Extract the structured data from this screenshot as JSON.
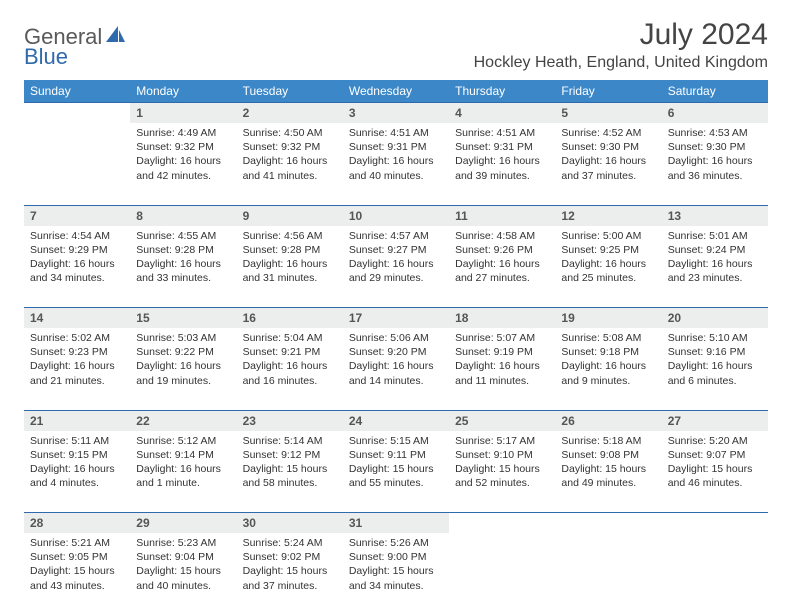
{
  "logo": {
    "part1": "General",
    "part2": "Blue"
  },
  "title": "July 2024",
  "location": "Hockley Heath, England, United Kingdom",
  "colors": {
    "header_bg": "#3b87c8",
    "accent_border": "#2f6aad",
    "daynum_bg": "#eceded",
    "logo_gray": "#5a5a5a",
    "logo_blue": "#2f6aad"
  },
  "weekdays": [
    "Sunday",
    "Monday",
    "Tuesday",
    "Wednesday",
    "Thursday",
    "Friday",
    "Saturday"
  ],
  "weeks": [
    {
      "nums": [
        "",
        "1",
        "2",
        "3",
        "4",
        "5",
        "6"
      ],
      "cells": [
        null,
        {
          "sunrise": "Sunrise: 4:49 AM",
          "sunset": "Sunset: 9:32 PM",
          "day1": "Daylight: 16 hours",
          "day2": "and 42 minutes."
        },
        {
          "sunrise": "Sunrise: 4:50 AM",
          "sunset": "Sunset: 9:32 PM",
          "day1": "Daylight: 16 hours",
          "day2": "and 41 minutes."
        },
        {
          "sunrise": "Sunrise: 4:51 AM",
          "sunset": "Sunset: 9:31 PM",
          "day1": "Daylight: 16 hours",
          "day2": "and 40 minutes."
        },
        {
          "sunrise": "Sunrise: 4:51 AM",
          "sunset": "Sunset: 9:31 PM",
          "day1": "Daylight: 16 hours",
          "day2": "and 39 minutes."
        },
        {
          "sunrise": "Sunrise: 4:52 AM",
          "sunset": "Sunset: 9:30 PM",
          "day1": "Daylight: 16 hours",
          "day2": "and 37 minutes."
        },
        {
          "sunrise": "Sunrise: 4:53 AM",
          "sunset": "Sunset: 9:30 PM",
          "day1": "Daylight: 16 hours",
          "day2": "and 36 minutes."
        }
      ]
    },
    {
      "nums": [
        "7",
        "8",
        "9",
        "10",
        "11",
        "12",
        "13"
      ],
      "cells": [
        {
          "sunrise": "Sunrise: 4:54 AM",
          "sunset": "Sunset: 9:29 PM",
          "day1": "Daylight: 16 hours",
          "day2": "and 34 minutes."
        },
        {
          "sunrise": "Sunrise: 4:55 AM",
          "sunset": "Sunset: 9:28 PM",
          "day1": "Daylight: 16 hours",
          "day2": "and 33 minutes."
        },
        {
          "sunrise": "Sunrise: 4:56 AM",
          "sunset": "Sunset: 9:28 PM",
          "day1": "Daylight: 16 hours",
          "day2": "and 31 minutes."
        },
        {
          "sunrise": "Sunrise: 4:57 AM",
          "sunset": "Sunset: 9:27 PM",
          "day1": "Daylight: 16 hours",
          "day2": "and 29 minutes."
        },
        {
          "sunrise": "Sunrise: 4:58 AM",
          "sunset": "Sunset: 9:26 PM",
          "day1": "Daylight: 16 hours",
          "day2": "and 27 minutes."
        },
        {
          "sunrise": "Sunrise: 5:00 AM",
          "sunset": "Sunset: 9:25 PM",
          "day1": "Daylight: 16 hours",
          "day2": "and 25 minutes."
        },
        {
          "sunrise": "Sunrise: 5:01 AM",
          "sunset": "Sunset: 9:24 PM",
          "day1": "Daylight: 16 hours",
          "day2": "and 23 minutes."
        }
      ]
    },
    {
      "nums": [
        "14",
        "15",
        "16",
        "17",
        "18",
        "19",
        "20"
      ],
      "cells": [
        {
          "sunrise": "Sunrise: 5:02 AM",
          "sunset": "Sunset: 9:23 PM",
          "day1": "Daylight: 16 hours",
          "day2": "and 21 minutes."
        },
        {
          "sunrise": "Sunrise: 5:03 AM",
          "sunset": "Sunset: 9:22 PM",
          "day1": "Daylight: 16 hours",
          "day2": "and 19 minutes."
        },
        {
          "sunrise": "Sunrise: 5:04 AM",
          "sunset": "Sunset: 9:21 PM",
          "day1": "Daylight: 16 hours",
          "day2": "and 16 minutes."
        },
        {
          "sunrise": "Sunrise: 5:06 AM",
          "sunset": "Sunset: 9:20 PM",
          "day1": "Daylight: 16 hours",
          "day2": "and 14 minutes."
        },
        {
          "sunrise": "Sunrise: 5:07 AM",
          "sunset": "Sunset: 9:19 PM",
          "day1": "Daylight: 16 hours",
          "day2": "and 11 minutes."
        },
        {
          "sunrise": "Sunrise: 5:08 AM",
          "sunset": "Sunset: 9:18 PM",
          "day1": "Daylight: 16 hours",
          "day2": "and 9 minutes."
        },
        {
          "sunrise": "Sunrise: 5:10 AM",
          "sunset": "Sunset: 9:16 PM",
          "day1": "Daylight: 16 hours",
          "day2": "and 6 minutes."
        }
      ]
    },
    {
      "nums": [
        "21",
        "22",
        "23",
        "24",
        "25",
        "26",
        "27"
      ],
      "cells": [
        {
          "sunrise": "Sunrise: 5:11 AM",
          "sunset": "Sunset: 9:15 PM",
          "day1": "Daylight: 16 hours",
          "day2": "and 4 minutes."
        },
        {
          "sunrise": "Sunrise: 5:12 AM",
          "sunset": "Sunset: 9:14 PM",
          "day1": "Daylight: 16 hours",
          "day2": "and 1 minute."
        },
        {
          "sunrise": "Sunrise: 5:14 AM",
          "sunset": "Sunset: 9:12 PM",
          "day1": "Daylight: 15 hours",
          "day2": "and 58 minutes."
        },
        {
          "sunrise": "Sunrise: 5:15 AM",
          "sunset": "Sunset: 9:11 PM",
          "day1": "Daylight: 15 hours",
          "day2": "and 55 minutes."
        },
        {
          "sunrise": "Sunrise: 5:17 AM",
          "sunset": "Sunset: 9:10 PM",
          "day1": "Daylight: 15 hours",
          "day2": "and 52 minutes."
        },
        {
          "sunrise": "Sunrise: 5:18 AM",
          "sunset": "Sunset: 9:08 PM",
          "day1": "Daylight: 15 hours",
          "day2": "and 49 minutes."
        },
        {
          "sunrise": "Sunrise: 5:20 AM",
          "sunset": "Sunset: 9:07 PM",
          "day1": "Daylight: 15 hours",
          "day2": "and 46 minutes."
        }
      ]
    },
    {
      "nums": [
        "28",
        "29",
        "30",
        "31",
        "",
        "",
        ""
      ],
      "cells": [
        {
          "sunrise": "Sunrise: 5:21 AM",
          "sunset": "Sunset: 9:05 PM",
          "day1": "Daylight: 15 hours",
          "day2": "and 43 minutes."
        },
        {
          "sunrise": "Sunrise: 5:23 AM",
          "sunset": "Sunset: 9:04 PM",
          "day1": "Daylight: 15 hours",
          "day2": "and 40 minutes."
        },
        {
          "sunrise": "Sunrise: 5:24 AM",
          "sunset": "Sunset: 9:02 PM",
          "day1": "Daylight: 15 hours",
          "day2": "and 37 minutes."
        },
        {
          "sunrise": "Sunrise: 5:26 AM",
          "sunset": "Sunset: 9:00 PM",
          "day1": "Daylight: 15 hours",
          "day2": "and 34 minutes."
        },
        null,
        null,
        null
      ]
    }
  ]
}
